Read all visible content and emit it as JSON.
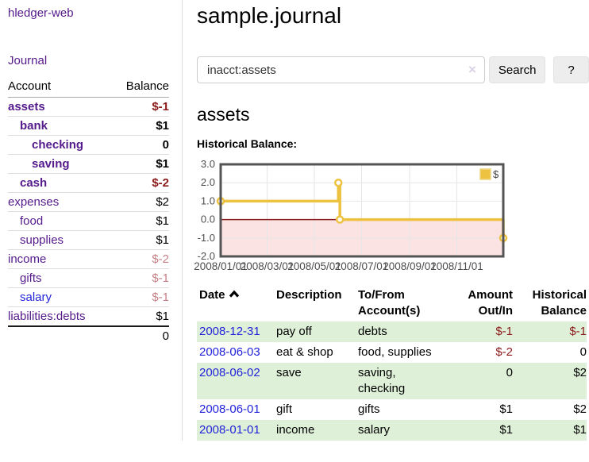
{
  "palette": {
    "link_purple": "#551a8b",
    "link_blue": "#2323d9",
    "negative": "#8b1a1a",
    "negative_muted": "#c67f87",
    "normal": "#000000",
    "row_green": "#dff0d8",
    "chart_gold": "#edc240",
    "chart_gold_light": "#eed47f",
    "chart_negative_fill": "#fbe3e3",
    "chart_zero_line": "#8e1f1f",
    "chart_grid": "#e6e6e6",
    "chart_border": "#545454",
    "chart_tick_text": "#4d4d4d"
  },
  "sidebar": {
    "app_title": "hledger-web",
    "journal_link": "Journal",
    "headers": {
      "account": "Account",
      "balance": "Balance"
    },
    "accounts": [
      {
        "name": "assets",
        "indent": 0,
        "bold": true,
        "name_color": "purple",
        "balance": "$-1",
        "balance_color": "negative"
      },
      {
        "name": "bank",
        "indent": 1,
        "bold": true,
        "name_color": "purple",
        "balance": "$1",
        "balance_color": "normal"
      },
      {
        "name": "checking",
        "indent": 2,
        "bold": true,
        "name_color": "purple",
        "balance": "0",
        "balance_color": "normal"
      },
      {
        "name": "saving",
        "indent": 2,
        "bold": true,
        "name_color": "purple",
        "balance": "$1",
        "balance_color": "normal"
      },
      {
        "name": "cash",
        "indent": 1,
        "bold": true,
        "name_color": "purple",
        "balance": "$-2",
        "balance_color": "negative"
      },
      {
        "name": "expenses",
        "indent": 0,
        "bold": false,
        "name_color": "purple",
        "balance": "$2",
        "balance_color": "normal"
      },
      {
        "name": "food",
        "indent": 1,
        "bold": false,
        "name_color": "purple",
        "balance": "$1",
        "balance_color": "normal"
      },
      {
        "name": "supplies",
        "indent": 1,
        "bold": false,
        "name_color": "purple",
        "balance": "$1",
        "balance_color": "normal"
      },
      {
        "name": "income",
        "indent": 0,
        "bold": false,
        "name_color": "purple",
        "balance": "$-2",
        "balance_color": "negative_muted"
      },
      {
        "name": "gifts",
        "indent": 1,
        "bold": false,
        "name_color": "purple",
        "balance": "$-1",
        "balance_color": "negative_muted"
      },
      {
        "name": "salary",
        "indent": 1,
        "bold": false,
        "name_color": "blue",
        "balance": "$-1",
        "balance_color": "negative_muted"
      },
      {
        "name": "liabilities:debts",
        "indent": 0,
        "bold": false,
        "name_color": "purple",
        "balance": "$1",
        "balance_color": "normal"
      }
    ],
    "total": "0"
  },
  "main": {
    "title": "sample.journal",
    "search": {
      "value": "inacct:assets",
      "clear_icon": "×",
      "search_button": "Search",
      "help_button": "?"
    },
    "account_heading": "assets",
    "chart_label": "Historical Balance:",
    "register": {
      "headers": {
        "date": "Date",
        "description": "Description",
        "accounts": "To/From Account(s)",
        "amount": "Amount Out/In",
        "balance": "Historical Balance"
      },
      "rows": [
        {
          "date": "2008-12-31",
          "description": "pay off",
          "accounts": "debts",
          "amount": "$-1",
          "amount_color": "negative",
          "balance": "$-1",
          "balance_color": "negative"
        },
        {
          "date": "2008-06-03",
          "description": "eat & shop",
          "accounts": "food, supplies",
          "amount": "$-2",
          "amount_color": "negative",
          "balance": "0",
          "balance_color": "normal"
        },
        {
          "date": "2008-06-02",
          "description": "save",
          "accounts": "saving, checking",
          "amount": "0",
          "amount_color": "normal",
          "balance": "$2",
          "balance_color": "normal"
        },
        {
          "date": "2008-06-01",
          "description": "gift",
          "accounts": "gifts",
          "amount": "$1",
          "amount_color": "normal",
          "balance": "$2",
          "balance_color": "normal"
        },
        {
          "date": "2008-01-01",
          "description": "income",
          "accounts": "salary",
          "amount": "$1",
          "amount_color": "normal",
          "balance": "$1",
          "balance_color": "normal"
        }
      ]
    }
  },
  "chart_data": {
    "type": "line",
    "step": true,
    "title": "Historical Balance:",
    "legend": "$",
    "legend_position": "top-right",
    "grid": true,
    "xlim": [
      "2008/01/01",
      "2008/12/31"
    ],
    "ylim": [
      -2.0,
      3.0
    ],
    "y_ticks": [
      "3.0",
      "2.0",
      "1.0",
      "0.0",
      "-1.0",
      "-2.0"
    ],
    "y_tick_values": [
      3,
      2,
      1,
      0,
      -1,
      -2
    ],
    "x_ticks": [
      "2008/01/01",
      "2008/03/01",
      "2008/05/01",
      "2008/07/01",
      "2008/09/01",
      "2008/11/01"
    ],
    "series": [
      {
        "name": "$",
        "points": [
          [
            "2008/01/01",
            1
          ],
          [
            "2008/06/01",
            2
          ],
          [
            "2008/06/03",
            0
          ],
          [
            "2008/12/31",
            -1
          ]
        ]
      }
    ]
  }
}
